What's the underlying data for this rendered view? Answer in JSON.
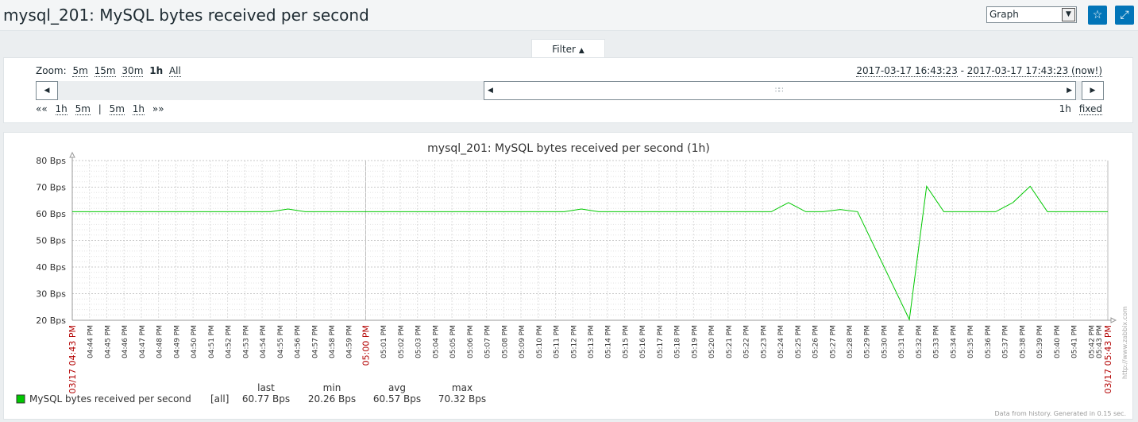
{
  "header": {
    "title": "mysql_201: MySQL bytes received per second",
    "view_select": "Graph",
    "favorite_icon": "star-icon",
    "fullscreen_icon": "fullscreen-icon"
  },
  "filter": {
    "tab_label": "Filter",
    "zoom_label": "Zoom:",
    "zoom_options": [
      "5m",
      "15m",
      "30m",
      "1h",
      "All"
    ],
    "zoom_active": "1h",
    "period_start": "2017-03-17 16:43:23",
    "period_sep": " - ",
    "period_end": "2017-03-17 17:43:23 (now!)",
    "nav_back": [
      "««",
      "1h",
      "5m",
      "|",
      "5m",
      "1h",
      "»»"
    ],
    "period_length": "1h",
    "period_mode": "fixed"
  },
  "graph": {
    "footer_note": "Data from history. Generated in 0.15 sec.",
    "watermark": "http://www.zabbix.com",
    "legend": {
      "item_name": "MySQL bytes received per second",
      "item_func": "[all]",
      "color": "#00c800",
      "headers": [
        "last",
        "min",
        "avg",
        "max"
      ],
      "values": [
        "60.77 Bps",
        "20.26 Bps",
        "60.57 Bps",
        "70.32 Bps"
      ]
    }
  },
  "chart_data": {
    "type": "line",
    "title": "mysql_201: MySQL bytes received per second (1h)",
    "ylim": [
      20,
      80
    ],
    "y_ticks": [
      "20 Bps",
      "30 Bps",
      "40 Bps",
      "50 Bps",
      "60 Bps",
      "70 Bps",
      "80 Bps"
    ],
    "x_start_label": "03/17 04:43 PM",
    "x_end_label": "03/17 05:43 PM",
    "x_mid_label": "05:00 PM",
    "x_ticks": [
      "04:44 PM",
      "04:45 PM",
      "04:46 PM",
      "04:47 PM",
      "04:48 PM",
      "04:49 PM",
      "04:50 PM",
      "04:51 PM",
      "04:52 PM",
      "04:53 PM",
      "04:54 PM",
      "04:55 PM",
      "04:56 PM",
      "04:57 PM",
      "04:58 PM",
      "04:59 PM",
      "05:00 PM",
      "05:01 PM",
      "05:02 PM",
      "05:03 PM",
      "05:04 PM",
      "05:05 PM",
      "05:06 PM",
      "05:07 PM",
      "05:08 PM",
      "05:09 PM",
      "05:10 PM",
      "05:11 PM",
      "05:12 PM",
      "05:13 PM",
      "05:14 PM",
      "05:15 PM",
      "05:16 PM",
      "05:17 PM",
      "05:18 PM",
      "05:19 PM",
      "05:20 PM",
      "05:21 PM",
      "05:22 PM",
      "05:23 PM",
      "05:24 PM",
      "05:25 PM",
      "05:26 PM",
      "05:27 PM",
      "05:28 PM",
      "05:29 PM",
      "05:30 PM",
      "05:31 PM",
      "05:32 PM",
      "05:33 PM",
      "05:34 PM",
      "05:35 PM",
      "05:36 PM",
      "05:37 PM",
      "05:38 PM",
      "05:39 PM",
      "05:40 PM",
      "05:41 PM",
      "05:42 PM",
      "05:43 PM"
    ],
    "series": [
      {
        "name": "MySQL bytes received per second",
        "color": "#00c800",
        "x_minutes": [
          0,
          11.5,
          12.5,
          13.5,
          28.5,
          29.5,
          30.5,
          40.5,
          41.5,
          42.5,
          43.5,
          44.5,
          45.5,
          48.5,
          49.5,
          50.5,
          51.5,
          53.5,
          54.5,
          55.5,
          56.5,
          57.5,
          60
        ],
        "values": [
          60.77,
          60.77,
          61.8,
          60.77,
          60.77,
          61.8,
          60.77,
          60.77,
          64.2,
          60.77,
          60.77,
          61.6,
          60.77,
          20.26,
          70.32,
          60.77,
          60.77,
          60.77,
          64.2,
          70.32,
          60.77,
          60.77,
          60.77
        ]
      }
    ]
  }
}
